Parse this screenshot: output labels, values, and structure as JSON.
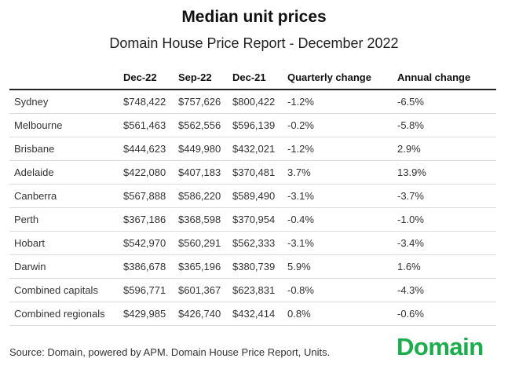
{
  "title": "Median unit prices",
  "subtitle": "Domain House Price Report - December 2022",
  "source": "Source: Domain, powered by APM. Domain House Price Report, Units.",
  "logo_text": "Domain",
  "colors": {
    "logo": "#1aae4b",
    "header_rule": "#222222",
    "row_rule": "#dcdcdc"
  },
  "chart_data": {
    "type": "table",
    "title": "Median unit prices",
    "subtitle": "Domain House Price Report - December 2022",
    "columns": [
      "",
      "Dec-22",
      "Sep-22",
      "Dec-21",
      "Quarterly change",
      "Annual change"
    ],
    "rows": [
      [
        "Sydney",
        "$748,422",
        "$757,626",
        "$800,422",
        "-1.2%",
        "-6.5%"
      ],
      [
        "Melbourne",
        "$561,463",
        "$562,556",
        "$596,139",
        "-0.2%",
        "-5.8%"
      ],
      [
        "Brisbane",
        "$444,623",
        "$449,980",
        "$432,021",
        "-1.2%",
        "2.9%"
      ],
      [
        "Adelaide",
        "$422,080",
        "$407,183",
        "$370,481",
        "3.7%",
        "13.9%"
      ],
      [
        "Canberra",
        "$567,888",
        "$586,220",
        "$589,490",
        "-3.1%",
        "-3.7%"
      ],
      [
        "Perth",
        "$367,186",
        "$368,598",
        "$370,954",
        "-0.4%",
        "-1.0%"
      ],
      [
        "Hobart",
        "$542,970",
        "$560,291",
        "$562,333",
        "-3.1%",
        "-3.4%"
      ],
      [
        "Darwin",
        "$386,678",
        "$365,196",
        "$380,739",
        "5.9%",
        "1.6%"
      ],
      [
        "Combined capitals",
        "$596,771",
        "$601,367",
        "$623,831",
        "-0.8%",
        "-4.3%"
      ],
      [
        "Combined regionals",
        "$429,985",
        "$426,740",
        "$432,414",
        "0.8%",
        "-0.6%"
      ]
    ]
  }
}
